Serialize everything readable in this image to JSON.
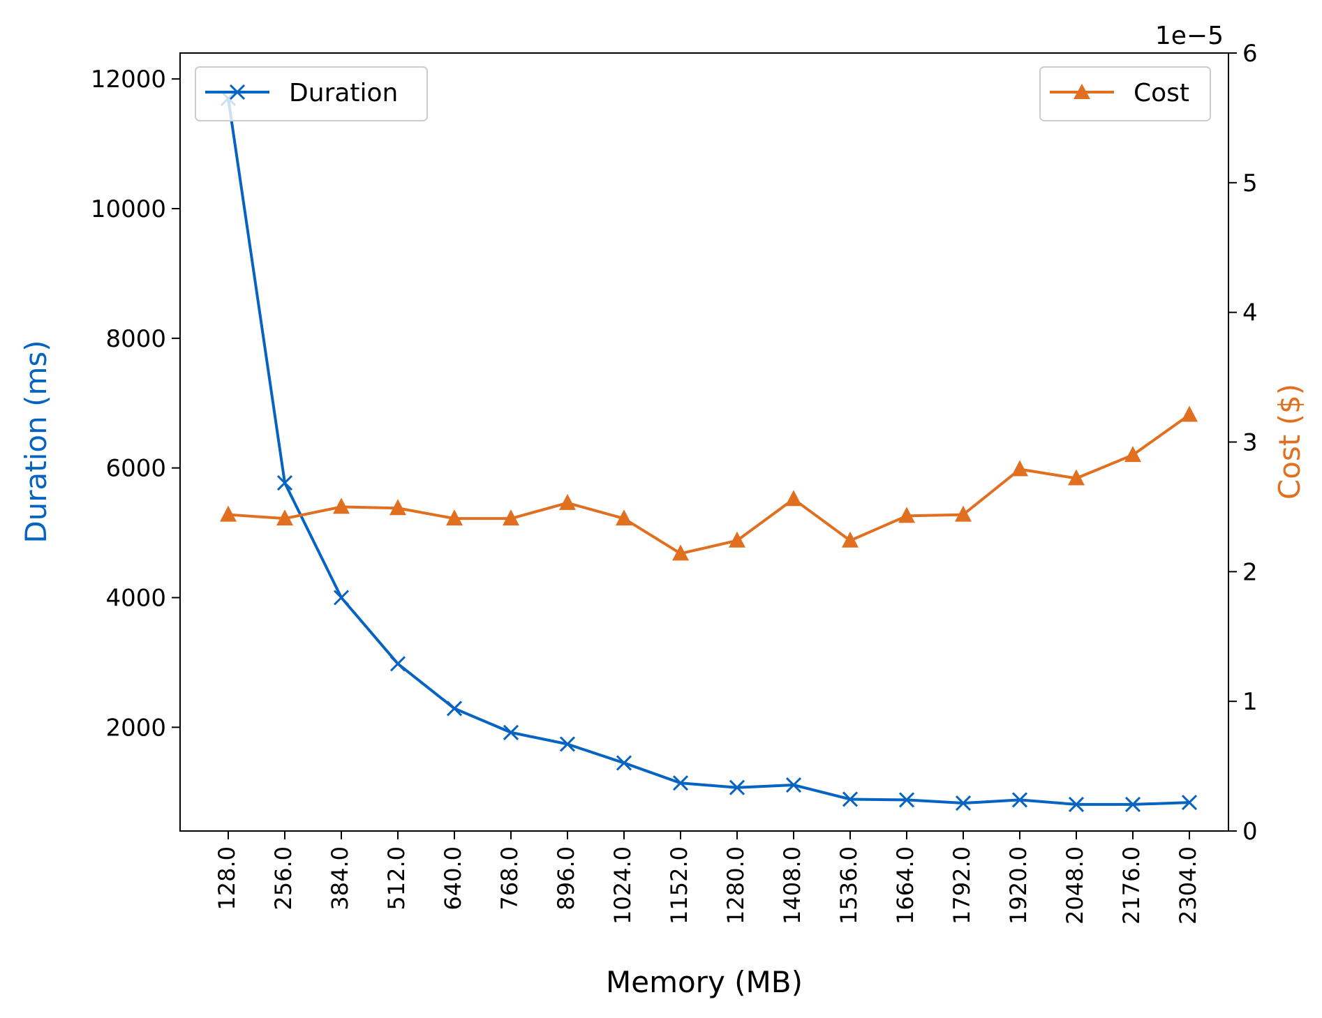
{
  "chart_data": {
    "type": "line",
    "xlabel": "Memory (MB)",
    "ylabel_left": "Duration (ms)",
    "ylabel_right": "Cost ($)",
    "right_axis_multiplier": "1e−5",
    "x": [
      128.0,
      256.0,
      384.0,
      512.0,
      640.0,
      768.0,
      896.0,
      1024.0,
      1152.0,
      1280.0,
      1408.0,
      1536.0,
      1664.0,
      1792.0,
      1920.0,
      2048.0,
      2176.0,
      2304.0
    ],
    "x_tick_labels": [
      "128.0",
      "256.0",
      "384.0",
      "512.0",
      "640.0",
      "768.0",
      "896.0",
      "1024.0",
      "1152.0",
      "1280.0",
      "1408.0",
      "1536.0",
      "1664.0",
      "1792.0",
      "1920.0",
      "2048.0",
      "2176.0",
      "2304.0"
    ],
    "y_left_ticks": [
      2000,
      4000,
      6000,
      8000,
      10000,
      12000
    ],
    "y_left_tick_labels": [
      "2000",
      "4000",
      "6000",
      "8000",
      "10000",
      "12000"
    ],
    "y_left_lim": [
      400,
      12400
    ],
    "y_right_ticks": [
      0,
      1,
      2,
      3,
      4,
      5,
      6
    ],
    "y_right_tick_labels": [
      "0",
      "1",
      "2",
      "3",
      "4",
      "5",
      "6"
    ],
    "y_right_lim": [
      0,
      6
    ],
    "series": [
      {
        "name": "Duration",
        "axis": "left",
        "color": "#0563C1",
        "marker": "x",
        "values": [
          11700,
          5770,
          4000,
          2980,
          2290,
          1920,
          1740,
          1450,
          1140,
          1070,
          1110,
          890,
          880,
          830,
          880,
          810,
          810,
          840
        ]
      },
      {
        "name": "Cost",
        "axis": "right",
        "color": "#E07020",
        "marker": "triangle",
        "values": [
          2.44,
          2.41,
          2.5,
          2.49,
          2.41,
          2.41,
          2.53,
          2.41,
          2.14,
          2.24,
          2.56,
          2.24,
          2.43,
          2.44,
          2.79,
          2.72,
          2.9,
          3.21
        ]
      }
    ],
    "legends": [
      {
        "label": "Duration",
        "position": "upper-left"
      },
      {
        "label": "Cost",
        "position": "upper-right"
      }
    ],
    "grid": false
  }
}
